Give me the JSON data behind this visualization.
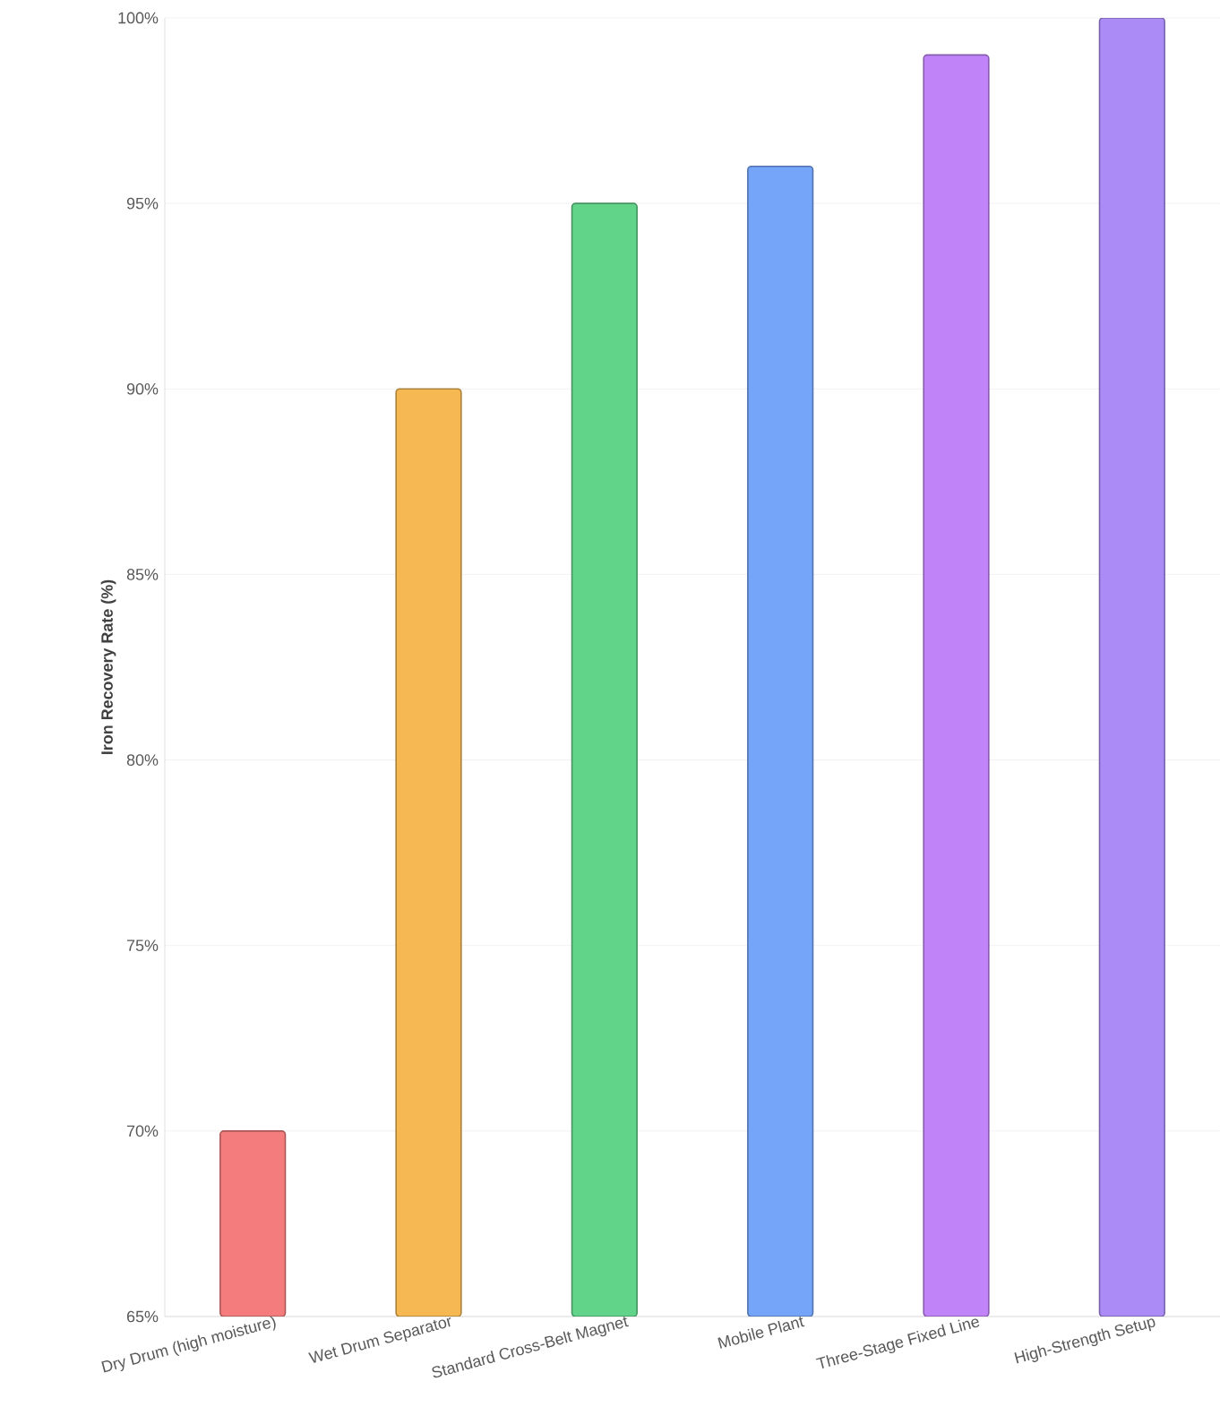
{
  "chart_data": {
    "type": "bar",
    "ylabel": "Iron Recovery Rate (%)",
    "categories": [
      "Dry Drum (high moisture)",
      "Wet Drum Separator",
      "Standard Cross-Belt Magnet",
      "Mobile Plant",
      "Three-Stage Fixed Line",
      "High-Strength Setup"
    ],
    "values": [
      70,
      90,
      95,
      96,
      99,
      100
    ],
    "colors": [
      "#f47c7c",
      "#f6b852",
      "#62d48a",
      "#75a5f9",
      "#c084f8",
      "#ab8cf6"
    ],
    "ylim": [
      65,
      100
    ],
    "yticks": [
      {
        "value": 65,
        "label": "65%"
      },
      {
        "value": 70,
        "label": "70%"
      },
      {
        "value": 75,
        "label": "75%"
      },
      {
        "value": 80,
        "label": "80%"
      },
      {
        "value": 85,
        "label": "85%"
      },
      {
        "value": 90,
        "label": "90%"
      },
      {
        "value": 95,
        "label": "95%"
      },
      {
        "value": 100,
        "label": "100%"
      }
    ],
    "grid": "y"
  }
}
